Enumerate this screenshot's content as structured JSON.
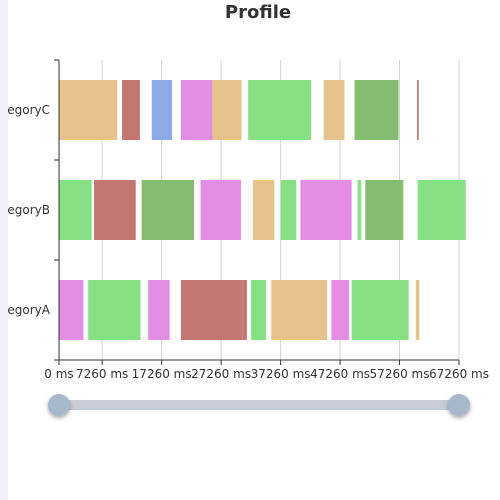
{
  "chart_data": {
    "type": "bar",
    "chart_kind": "profile-timeline",
    "title": "Profile",
    "categories": [
      "categoryA",
      "categoryB",
      "categoryC"
    ],
    "category_labels_visible": [
      "egoryA",
      "egoryB",
      "egoryC"
    ],
    "xaxis": {
      "min": 0,
      "max": 67260,
      "ticks": [
        0,
        7260,
        17260,
        27260,
        37260,
        47260,
        57260,
        67260
      ],
      "tick_labels": [
        "0 ms",
        "7260 ms",
        "17260 ms",
        "27260 ms",
        "37260 ms",
        "47260 ms",
        "57260 ms",
        "67260 ms"
      ],
      "grid": true
    },
    "colors": {
      "tan": "#e6c38c",
      "red": "#c37672",
      "blue": "#8eaae6",
      "pink": "#e38de3",
      "green": "#88e085",
      "darkgreen": "#86bd72"
    },
    "intervals": [
      {
        "category": "categoryC",
        "start": 0,
        "end": 9800,
        "color": "tan"
      },
      {
        "category": "categoryC",
        "start": 10600,
        "end": 13600,
        "color": "red"
      },
      {
        "category": "categoryC",
        "start": 15600,
        "end": 19000,
        "color": "blue"
      },
      {
        "category": "categoryC",
        "start": 20500,
        "end": 25800,
        "color": "pink"
      },
      {
        "category": "categoryC",
        "start": 25800,
        "end": 30700,
        "color": "tan"
      },
      {
        "category": "categoryC",
        "start": 31800,
        "end": 42400,
        "color": "green"
      },
      {
        "category": "categoryC",
        "start": 44500,
        "end": 48000,
        "color": "tan"
      },
      {
        "category": "categoryC",
        "start": 49700,
        "end": 57100,
        "color": "darkgreen"
      },
      {
        "category": "categoryC",
        "start": 60200,
        "end": 60500,
        "color": "red"
      },
      {
        "category": "categoryB",
        "start": 0,
        "end": 5500,
        "color": "green"
      },
      {
        "category": "categoryB",
        "start": 5900,
        "end": 12900,
        "color": "red"
      },
      {
        "category": "categoryB",
        "start": 13900,
        "end": 22700,
        "color": "darkgreen"
      },
      {
        "category": "categoryB",
        "start": 23800,
        "end": 30600,
        "color": "pink"
      },
      {
        "category": "categoryB",
        "start": 32600,
        "end": 36200,
        "color": "tan"
      },
      {
        "category": "categoryB",
        "start": 37300,
        "end": 39900,
        "color": "green"
      },
      {
        "category": "categoryB",
        "start": 40600,
        "end": 49200,
        "color": "pink"
      },
      {
        "category": "categoryB",
        "start": 50200,
        "end": 50800,
        "color": "green"
      },
      {
        "category": "categoryB",
        "start": 51500,
        "end": 57900,
        "color": "darkgreen"
      },
      {
        "category": "categoryB",
        "start": 60300,
        "end": 68400,
        "color": "green"
      },
      {
        "category": "categoryA",
        "start": 0,
        "end": 4100,
        "color": "pink"
      },
      {
        "category": "categoryA",
        "start": 4900,
        "end": 13700,
        "color": "green"
      },
      {
        "category": "categoryA",
        "start": 15000,
        "end": 18600,
        "color": "pink"
      },
      {
        "category": "categoryA",
        "start": 20500,
        "end": 30900,
        "color": "red"
      },
      {
        "category": "categoryA",
        "start": 30900,
        "end": 31600,
        "color": "red"
      },
      {
        "category": "categoryA",
        "start": 32300,
        "end": 34800,
        "color": "green"
      },
      {
        "category": "categoryA",
        "start": 35700,
        "end": 45100,
        "color": "tan"
      },
      {
        "category": "categoryA",
        "start": 45800,
        "end": 48800,
        "color": "pink"
      },
      {
        "category": "categoryA",
        "start": 49200,
        "end": 58800,
        "color": "green"
      },
      {
        "category": "categoryA",
        "start": 60000,
        "end": 60600,
        "color": "tan"
      }
    ],
    "datazoom": {
      "start_value": 0,
      "end_value": 67260
    }
  }
}
